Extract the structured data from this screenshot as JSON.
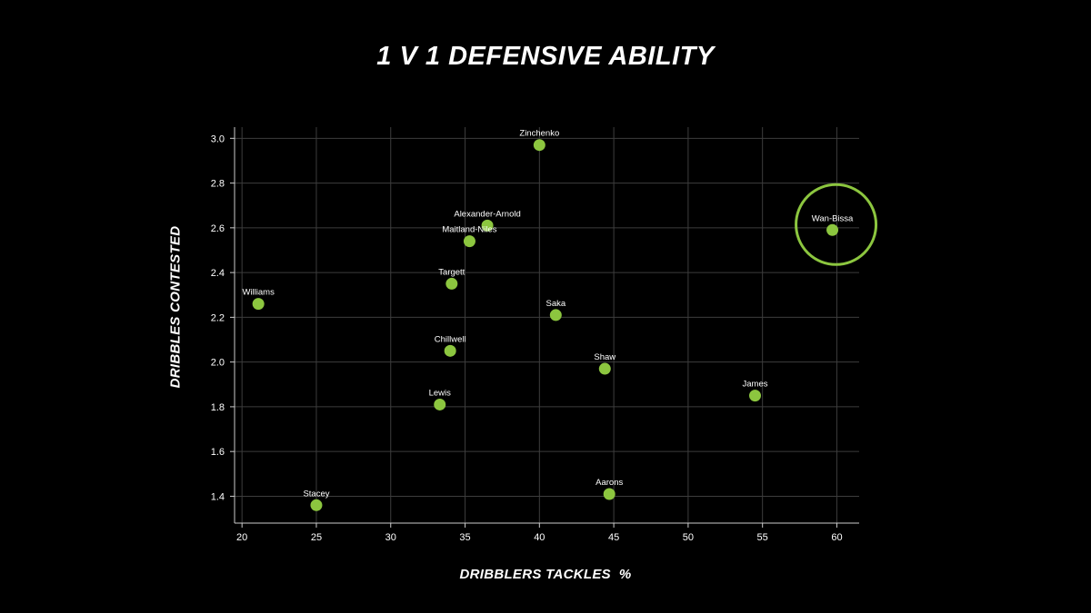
{
  "colors": {
    "background": "#000000",
    "point": "#8cc63f",
    "grid": "#3d3d3d",
    "text": "#ffffff",
    "highlight": "#8cc63f"
  },
  "chart_data": {
    "type": "scatter",
    "title": "1 V 1 DEFENSIVE ABILITY",
    "xlabel": "DRIBBLERS TACKLES  %",
    "ylabel": "DRIBBLES CONTESTED",
    "xlim": [
      19.5,
      61.5
    ],
    "ylim": [
      1.28,
      3.05
    ],
    "xticks": [
      "20",
      "25",
      "30",
      "35",
      "40",
      "45",
      "50",
      "55",
      "60"
    ],
    "yticks": [
      "1.4",
      "1.6",
      "1.8",
      "2.0",
      "2.2",
      "2.4",
      "2.6",
      "2.8",
      "3.0"
    ],
    "grid": true,
    "highlighted": "Wan-Bissa",
    "points": [
      {
        "label": "Zinchenko",
        "x": 40.0,
        "y": 2.97
      },
      {
        "label": "Alexander-Arnold",
        "x": 36.5,
        "y": 2.61
      },
      {
        "label": "Maitland-Niles",
        "x": 35.3,
        "y": 2.54
      },
      {
        "label": "Wan-Bissa",
        "x": 59.7,
        "y": 2.59
      },
      {
        "label": "Targett",
        "x": 34.1,
        "y": 2.35
      },
      {
        "label": "Williams",
        "x": 21.1,
        "y": 2.26
      },
      {
        "label": "Saka",
        "x": 41.1,
        "y": 2.21
      },
      {
        "label": "Chillwell",
        "x": 34.0,
        "y": 2.05
      },
      {
        "label": "Shaw",
        "x": 44.4,
        "y": 1.97
      },
      {
        "label": "James",
        "x": 54.5,
        "y": 1.85
      },
      {
        "label": "Lewis",
        "x": 33.3,
        "y": 1.81
      },
      {
        "label": "Stacey",
        "x": 25.0,
        "y": 1.36
      },
      {
        "label": "Aarons",
        "x": 44.7,
        "y": 1.41
      }
    ]
  }
}
